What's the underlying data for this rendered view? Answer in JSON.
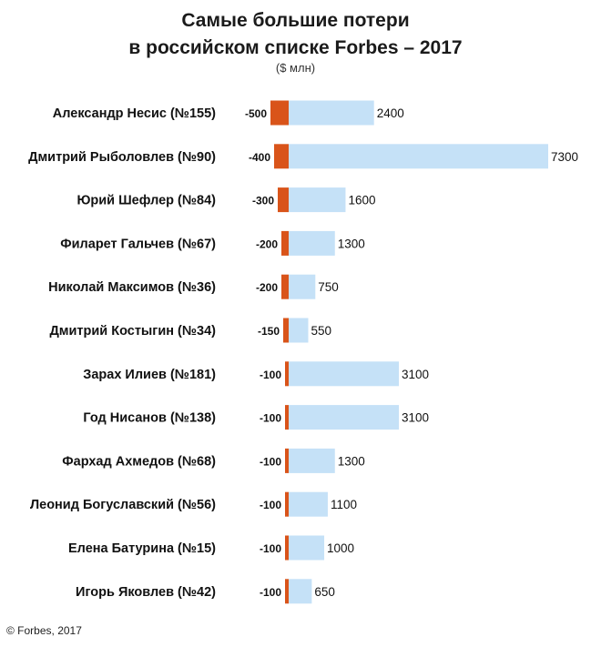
{
  "chart_data": {
    "type": "bar",
    "orientation": "horizontal",
    "title_line1": "Самые большие потери",
    "title_line2": "в российском списке Forbes – 2017",
    "unit": "($ млн)",
    "categories": [
      "Александр Несис (№155)",
      "Дмитрий Рыболовлев (№90)",
      "Юрий Шефлер (№84)",
      "Филарет Гальчев (№67)",
      "Николай Максимов (№36)",
      "Дмитрий Костыгин (№34)",
      "Зарах Илиев (№181)",
      "Год Нисанов (№138)",
      "Фархад Ахмедов (№68)",
      "Леонид Богуславский (№56)",
      "Елена Батурина (№15)",
      "Игорь Яковлев (№42)"
    ],
    "series": [
      {
        "values": [
          -500,
          -400,
          -300,
          -200,
          -200,
          -150,
          -100,
          -100,
          -100,
          -100,
          -100,
          -100
        ],
        "labels": [
          "-500",
          "-400",
          "-300",
          "-200",
          "-200",
          "-150",
          "-100",
          "-100",
          "-100",
          "-100",
          "-100",
          "-100"
        ],
        "color": "#d9541a"
      },
      {
        "values": [
          2400,
          7300,
          1600,
          1300,
          750,
          550,
          3100,
          3100,
          1300,
          1100,
          1000,
          650
        ],
        "labels": [
          "2400",
          "7300",
          "1600",
          "1300",
          "750",
          "550",
          "3100",
          "3100",
          "1300",
          "1100",
          "1000",
          "650"
        ],
        "color": "#c5e1f7"
      }
    ],
    "xlim": [
      -500,
      7300
    ],
    "grid": false
  },
  "footer": {
    "credit": "© Forbes, 2017"
  }
}
